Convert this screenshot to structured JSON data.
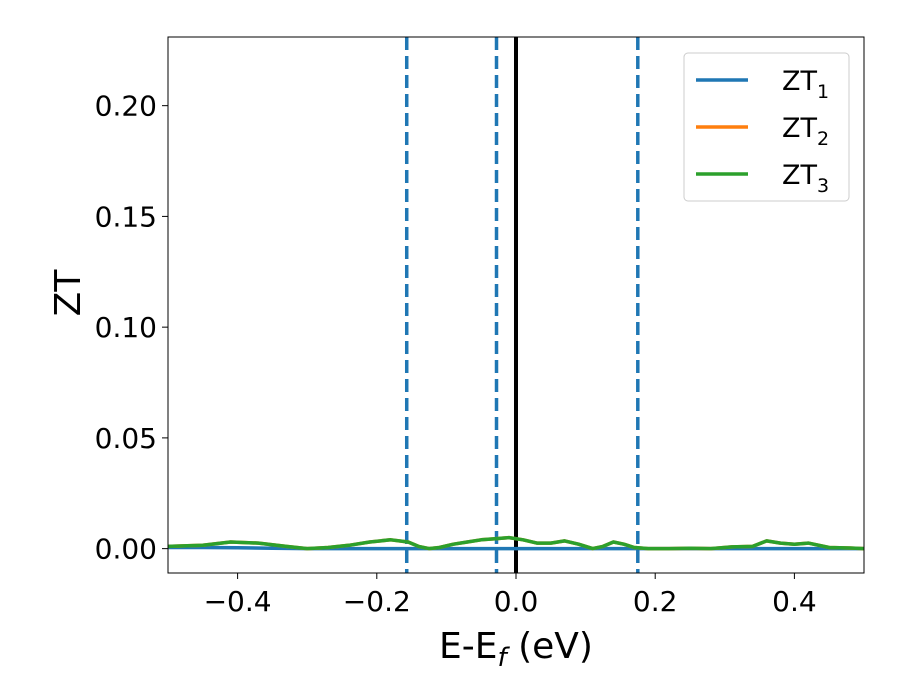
{
  "chart_data": {
    "type": "line",
    "xlabel_main": "E-E",
    "xlabel_sub": "f",
    "xlabel_unit": " (eV)",
    "ylabel": "ZT",
    "xlim": [
      -0.5,
      0.5
    ],
    "ylim": [
      -0.011,
      0.231
    ],
    "xticks": [
      -0.4,
      -0.2,
      0.0,
      0.2,
      0.4
    ],
    "xtick_labels": [
      "−0.4",
      "−0.2",
      "0.0",
      "0.2",
      "0.4"
    ],
    "yticks": [
      0.0,
      0.05,
      0.1,
      0.15,
      0.2
    ],
    "ytick_labels": [
      "0.00",
      "0.05",
      "0.10",
      "0.15",
      "0.20"
    ],
    "grid": false,
    "legend_position": "top-right",
    "legend": [
      {
        "base": "ZT",
        "sub": "1",
        "color": "#1f77b4"
      },
      {
        "base": "ZT",
        "sub": "2",
        "color": "#ff7f0e"
      },
      {
        "base": "ZT",
        "sub": "3",
        "color": "#2ca02c"
      }
    ],
    "series": [
      {
        "legend_index": 0,
        "color": "#1f77b4",
        "x": [
          -0.5,
          -0.45,
          -0.4,
          -0.35,
          -0.3,
          -0.25,
          -0.2,
          -0.15,
          -0.1,
          -0.05,
          0.0,
          0.05,
          0.1,
          0.15,
          0.2,
          0.25,
          0.3,
          0.35,
          0.4,
          0.45,
          0.5
        ],
        "y": [
          0.0005,
          0.0005,
          0.0004,
          0.0002,
          0.0,
          0.0,
          0.0,
          0.0,
          0.0,
          0.0,
          0.0,
          0.0,
          0.0,
          0.0,
          0.0,
          0.0,
          0.0,
          0.0,
          0.0,
          0.0,
          0.0
        ]
      },
      {
        "legend_index": 1,
        "color": "#ff7f0e",
        "x": [
          -0.5,
          -0.45,
          -0.41,
          -0.37,
          -0.33,
          -0.3,
          -0.27,
          -0.24,
          -0.21,
          -0.18,
          -0.155,
          -0.14,
          -0.125,
          -0.11,
          -0.09,
          -0.07,
          -0.05,
          -0.03,
          -0.01,
          0.01,
          0.03,
          0.05,
          0.07,
          0.09,
          0.11,
          0.125,
          0.14,
          0.155,
          0.17,
          0.19,
          0.22,
          0.25,
          0.28,
          0.31,
          0.34,
          0.36,
          0.38,
          0.4,
          0.42,
          0.45,
          0.48,
          0.5
        ],
        "y": [
          0.001,
          0.0015,
          0.003,
          0.0025,
          0.001,
          0.0,
          0.0005,
          0.0015,
          0.003,
          0.004,
          0.003,
          0.001,
          0.0,
          0.0005,
          0.002,
          0.003,
          0.004,
          0.0045,
          0.005,
          0.004,
          0.0025,
          0.0025,
          0.0035,
          0.002,
          0.0,
          0.001,
          0.003,
          0.002,
          0.0005,
          0.0,
          0.0,
          0.0002,
          0.0,
          0.0008,
          0.001,
          0.0035,
          0.0025,
          0.002,
          0.0025,
          0.0005,
          0.0003,
          0.0
        ]
      },
      {
        "legend_index": 2,
        "color": "#2ca02c",
        "x": [
          -0.5,
          -0.45,
          -0.41,
          -0.37,
          -0.33,
          -0.3,
          -0.27,
          -0.24,
          -0.21,
          -0.18,
          -0.155,
          -0.14,
          -0.125,
          -0.11,
          -0.09,
          -0.07,
          -0.05,
          -0.03,
          -0.01,
          0.01,
          0.03,
          0.05,
          0.07,
          0.09,
          0.11,
          0.125,
          0.14,
          0.155,
          0.17,
          0.19,
          0.22,
          0.25,
          0.28,
          0.31,
          0.34,
          0.36,
          0.38,
          0.4,
          0.42,
          0.45,
          0.48,
          0.5
        ],
        "y": [
          0.001,
          0.0015,
          0.003,
          0.0025,
          0.001,
          0.0,
          0.0005,
          0.0015,
          0.003,
          0.004,
          0.003,
          0.001,
          0.0,
          0.0005,
          0.002,
          0.003,
          0.004,
          0.0045,
          0.005,
          0.004,
          0.0025,
          0.0025,
          0.0035,
          0.002,
          0.0,
          0.001,
          0.003,
          0.002,
          0.0005,
          0.0,
          0.0,
          0.0002,
          0.0,
          0.0008,
          0.001,
          0.0035,
          0.0025,
          0.002,
          0.0025,
          0.0005,
          0.0003,
          0.0
        ]
      }
    ],
    "vlines": [
      {
        "x": -0.157,
        "color": "#1f77b4",
        "style": "dashed"
      },
      {
        "x": -0.028,
        "color": "#1f77b4",
        "style": "dashed"
      },
      {
        "x": 0.0,
        "color": "#000000",
        "style": "solid"
      },
      {
        "x": 0.175,
        "color": "#1f77b4",
        "style": "dashed"
      }
    ]
  }
}
